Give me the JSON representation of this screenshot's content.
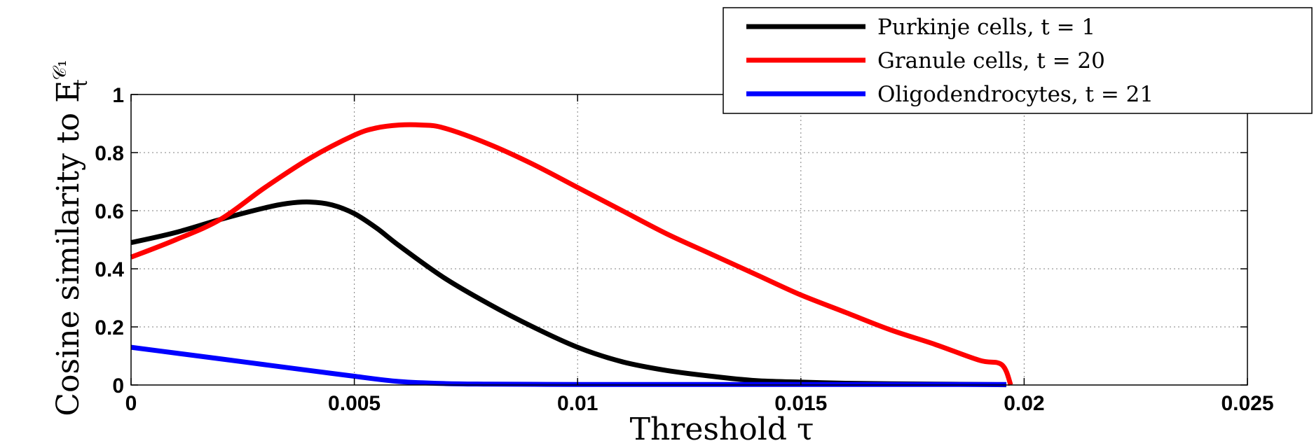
{
  "chart_data": {
    "type": "line",
    "xlabel": "Threshold τ",
    "ylabel": "Cosine similarity to E",
    "ylabel_sup": "𝒞₁",
    "ylabel_sub": "τ",
    "xlim": [
      0,
      0.025
    ],
    "ylim": [
      0,
      1
    ],
    "x_ticks": [
      0,
      0.005,
      0.01,
      0.015,
      0.02,
      0.025
    ],
    "x_tick_labels": [
      "0",
      "0.005",
      "0.01",
      "0.015",
      "0.02",
      "0.025"
    ],
    "y_ticks": [
      0,
      0.2,
      0.4,
      0.6,
      0.8,
      1
    ],
    "y_tick_labels": [
      "0",
      "0.2",
      "0.4",
      "0.6",
      "0.8",
      "1"
    ],
    "grid": true,
    "legend_position": "top-right",
    "series": [
      {
        "name": "Purkinje cells, t = 1",
        "color": "#000000",
        "x": [
          0,
          0.001,
          0.002,
          0.003,
          0.0035,
          0.004,
          0.0045,
          0.005,
          0.0055,
          0.006,
          0.007,
          0.008,
          0.009,
          0.01,
          0.011,
          0.012,
          0.013,
          0.014,
          0.015,
          0.016,
          0.017,
          0.018,
          0.019,
          0.0196
        ],
        "y": [
          0.49,
          0.525,
          0.57,
          0.61,
          0.625,
          0.63,
          0.62,
          0.59,
          0.54,
          0.48,
          0.37,
          0.28,
          0.2,
          0.13,
          0.08,
          0.05,
          0.03,
          0.015,
          0.01,
          0.006,
          0.004,
          0.003,
          0.002,
          0.001
        ]
      },
      {
        "name": "Granule cells, t = 20",
        "color": "#ff0000",
        "x": [
          0,
          0.001,
          0.002,
          0.003,
          0.004,
          0.005,
          0.0055,
          0.006,
          0.0065,
          0.007,
          0.008,
          0.009,
          0.01,
          0.011,
          0.012,
          0.013,
          0.014,
          0.015,
          0.016,
          0.017,
          0.018,
          0.019,
          0.0195,
          0.0197
        ],
        "y": [
          0.44,
          0.5,
          0.57,
          0.68,
          0.78,
          0.86,
          0.885,
          0.895,
          0.895,
          0.885,
          0.83,
          0.76,
          0.68,
          0.6,
          0.52,
          0.45,
          0.38,
          0.31,
          0.25,
          0.19,
          0.14,
          0.085,
          0.07,
          0.0
        ]
      },
      {
        "name": "Oligodendrocytes, t = 21",
        "color": "#0000ff",
        "x": [
          0,
          0.001,
          0.002,
          0.003,
          0.004,
          0.005,
          0.006,
          0.007,
          0.008,
          0.01,
          0.012,
          0.015,
          0.0196
        ],
        "y": [
          0.13,
          0.11,
          0.09,
          0.07,
          0.05,
          0.03,
          0.012,
          0.005,
          0.003,
          0.002,
          0.002,
          0.002,
          0.002
        ]
      }
    ]
  }
}
